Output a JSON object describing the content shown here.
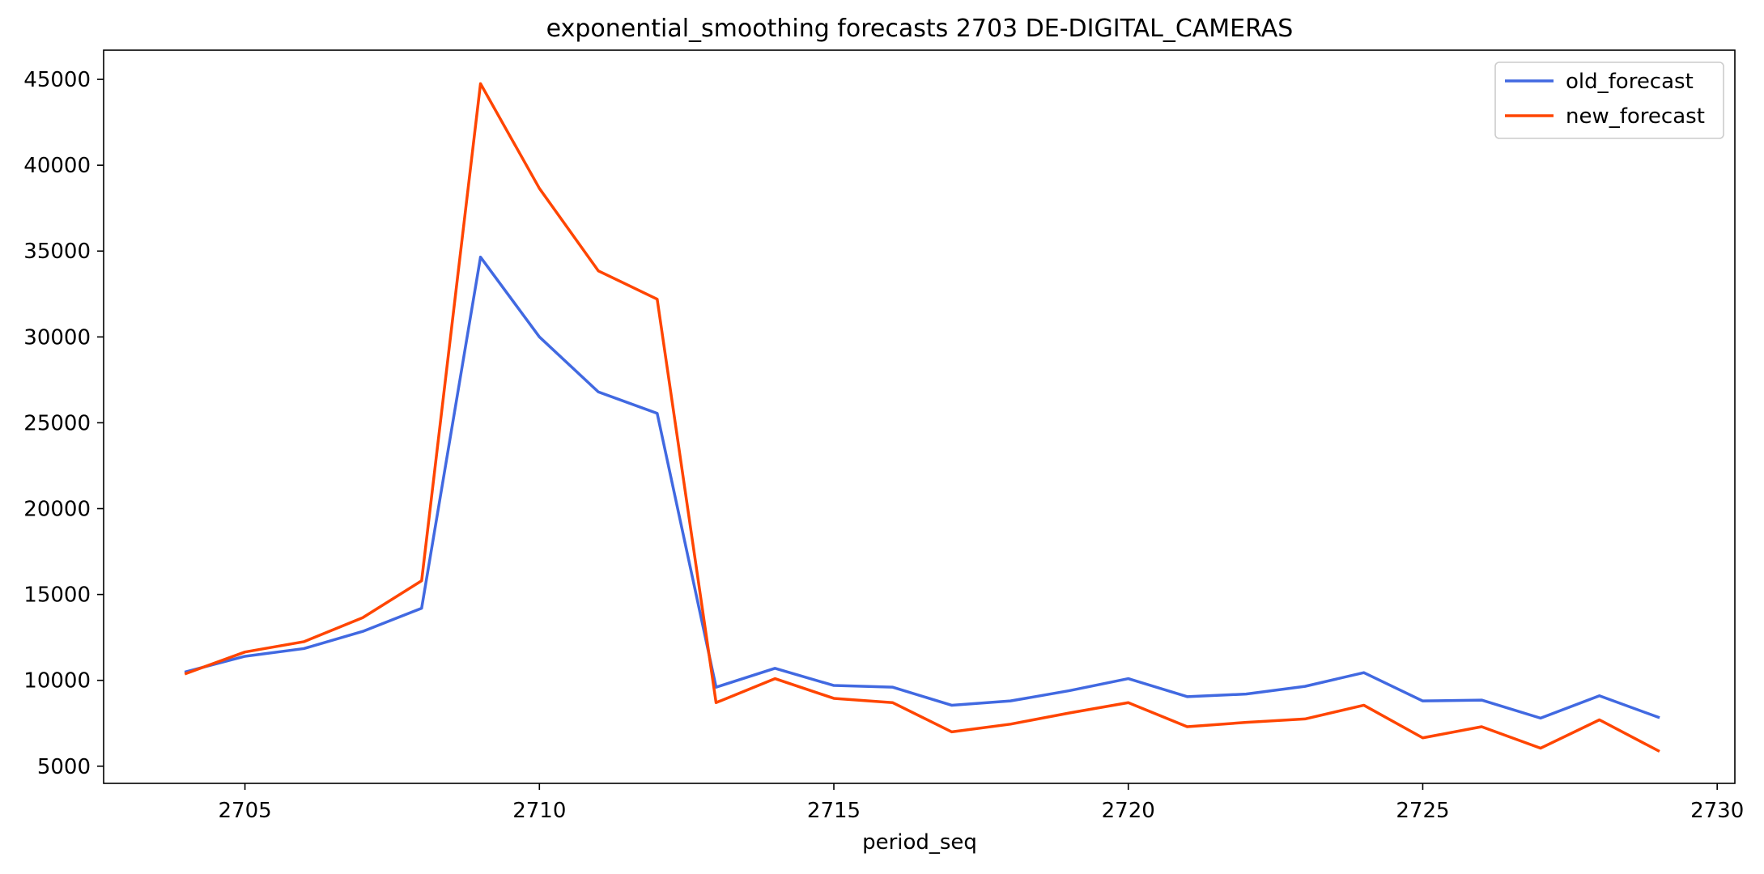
{
  "chart_data": {
    "type": "line",
    "title": "exponential_smoothing forecasts 2703 DE-DIGITAL_CAMERAS",
    "xlabel": "period_seq",
    "ylabel": "",
    "xlim": [
      2702.6,
      2730.3
    ],
    "ylim": [
      4000,
      46700
    ],
    "x_ticks": [
      2705,
      2710,
      2715,
      2720,
      2725,
      2730
    ],
    "y_ticks": [
      5000,
      10000,
      15000,
      20000,
      25000,
      30000,
      35000,
      40000,
      45000
    ],
    "x": [
      2704,
      2705,
      2706,
      2707,
      2708,
      2709,
      2710,
      2711,
      2712,
      2713,
      2714,
      2715,
      2716,
      2717,
      2718,
      2719,
      2720,
      2721,
      2722,
      2723,
      2724,
      2725,
      2726,
      2727,
      2728,
      2729
    ],
    "series": [
      {
        "name": "old_forecast",
        "color": "#4169e1",
        "values": [
          10500,
          11400,
          11850,
          12850,
          14200,
          34650,
          30000,
          26800,
          25550,
          9600,
          10700,
          9700,
          9600,
          8550,
          8800,
          9400,
          10100,
          9050,
          9200,
          9650,
          10450,
          8800,
          8850,
          7800,
          9100,
          7850
        ]
      },
      {
        "name": "new_forecast",
        "color": "#ff4500",
        "values": [
          10400,
          11650,
          12250,
          13650,
          15800,
          44750,
          38650,
          33850,
          32200,
          8700,
          10100,
          8950,
          8700,
          7000,
          7450,
          8100,
          8700,
          7300,
          7550,
          7750,
          8550,
          6650,
          7300,
          6050,
          7700,
          5900
        ]
      }
    ],
    "legend": {
      "position": "top-right",
      "entries": [
        "old_forecast",
        "new_forecast"
      ]
    },
    "grid": false
  }
}
